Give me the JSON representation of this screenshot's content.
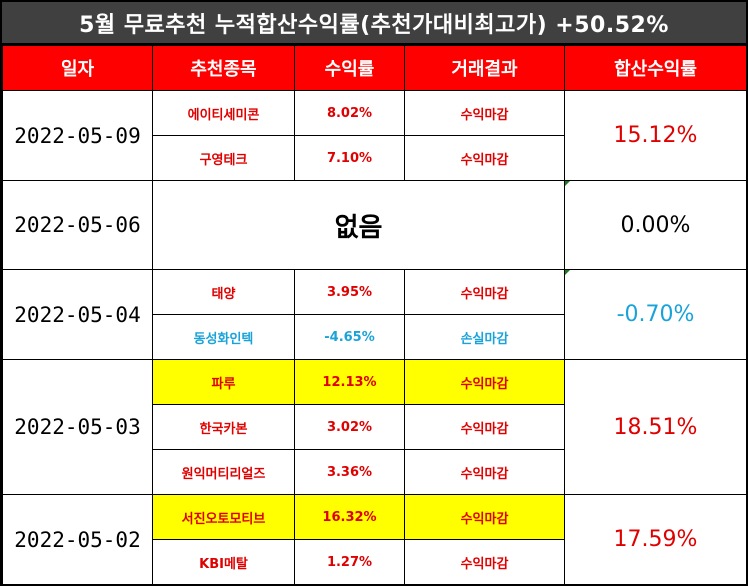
{
  "title": "5월 무료추천 누적합산수익률(추천가대비최고가) +50.52%",
  "headers": [
    "일자",
    "추천종목",
    "수익률",
    "거래결과",
    "합산수익률"
  ],
  "groups": [
    {
      "date": "2022-05-09",
      "total": "15.12%",
      "total_color": "red",
      "rows": [
        {
          "stock": "에이티세미콘",
          "rate": "8.02%",
          "result": "수익마감",
          "color": "red",
          "highlight": false
        },
        {
          "stock": "구영테크",
          "rate": "7.10%",
          "result": "수익마감",
          "color": "red",
          "highlight": false
        }
      ]
    },
    {
      "date": "2022-05-06",
      "total": "0.00%",
      "total_color": "black",
      "none_text": "없음",
      "rows": []
    },
    {
      "date": "2022-05-04",
      "total": "-0.70%",
      "total_color": "blue",
      "rows": [
        {
          "stock": "태양",
          "rate": "3.95%",
          "result": "수익마감",
          "color": "red",
          "highlight": false
        },
        {
          "stock": "동성화인텍",
          "rate": "-4.65%",
          "result": "손실마감",
          "color": "blue",
          "highlight": false
        }
      ]
    },
    {
      "date": "2022-05-03",
      "total": "18.51%",
      "total_color": "red",
      "rows": [
        {
          "stock": "파루",
          "rate": "12.13%",
          "result": "수익마감",
          "color": "red",
          "highlight": true
        },
        {
          "stock": "한국카본",
          "rate": "3.02%",
          "result": "수익마감",
          "color": "red",
          "highlight": false
        },
        {
          "stock": "원익머티리얼즈",
          "rate": "3.36%",
          "result": "수익마감",
          "color": "red",
          "highlight": false
        }
      ]
    },
    {
      "date": "2022-05-02",
      "total": "17.59%",
      "total_color": "red",
      "rows": [
        {
          "stock": "서진오토모티브",
          "rate": "16.32%",
          "result": "수익마감",
          "color": "red",
          "highlight": true
        },
        {
          "stock": "KBI메탈",
          "rate": "1.27%",
          "result": "수익마감",
          "color": "red",
          "highlight": false
        }
      ]
    }
  ]
}
